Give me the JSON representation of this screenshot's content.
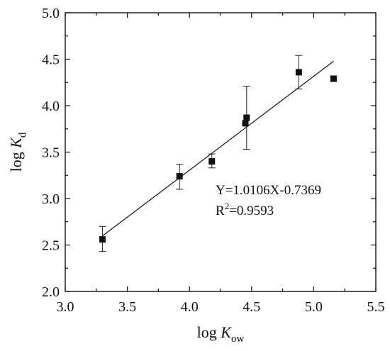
{
  "chart_data": {
    "type": "scatter",
    "title": "",
    "xlabel": {
      "prefix": "log ",
      "italic": "K",
      "subscript": "ow"
    },
    "ylabel": {
      "prefix": "log ",
      "italic": "K",
      "subscript": "d"
    },
    "xlim": [
      3.0,
      5.5
    ],
    "ylim": [
      2.0,
      5.0
    ],
    "x_ticks": [
      3.0,
      3.5,
      4.0,
      4.5,
      5.0,
      5.5
    ],
    "y_ticks": [
      2.0,
      2.5,
      3.0,
      3.5,
      4.0,
      4.5,
      5.0
    ],
    "x_tick_labels": [
      "3.0",
      "3.5",
      "4.0",
      "4.5",
      "5.0",
      "5.5"
    ],
    "y_tick_labels": [
      "2.0",
      "2.5",
      "3.0",
      "3.5",
      "4.0",
      "4.5",
      "5.0"
    ],
    "grid": false,
    "marker": "square",
    "points": [
      {
        "x": 3.3,
        "y": 2.56,
        "err_low": 2.43,
        "err_high": 2.7
      },
      {
        "x": 3.92,
        "y": 3.24,
        "err_low": 3.1,
        "err_high": 3.37
      },
      {
        "x": 4.18,
        "y": 3.4,
        "err_low": 3.33,
        "err_high": 3.48
      },
      {
        "x": 4.45,
        "y": 3.81,
        "err_low": null,
        "err_high": null
      },
      {
        "x": 4.46,
        "y": 3.87,
        "err_low": 3.53,
        "err_high": 4.21
      },
      {
        "x": 4.88,
        "y": 4.36,
        "err_low": 4.18,
        "err_high": 4.54
      },
      {
        "x": 5.16,
        "y": 4.29,
        "err_low": 4.26,
        "err_high": 4.32
      }
    ],
    "fit_line": {
      "slope": 1.0106,
      "intercept": -0.7369,
      "x_range": [
        3.3,
        5.16
      ]
    },
    "annotations": {
      "equation": "Y=1.0106X-0.7369",
      "r2_prefix": "R",
      "r2_sup": "2",
      "r2_value": "=0.9593"
    }
  }
}
